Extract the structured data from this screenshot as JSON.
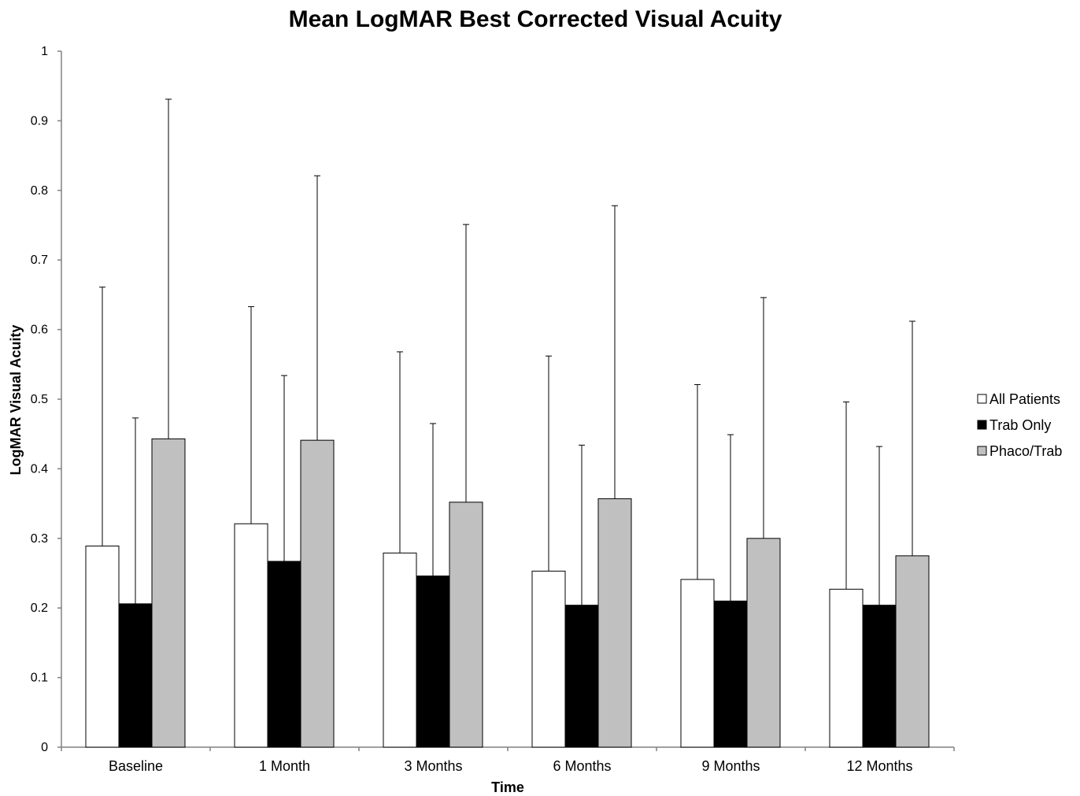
{
  "chart_data": {
    "type": "bar",
    "title": "Mean LogMAR Best Corrected Visual Acuity",
    "xlabel": "Time",
    "ylabel": "LogMAR Visual Acuity",
    "ylim": [
      0,
      1
    ],
    "yticks": [
      "0",
      "0.1",
      "0.2",
      "0.3",
      "0.4",
      "0.5",
      "0.6",
      "0.7",
      "0.8",
      "0.9",
      "1"
    ],
    "categories": [
      "Baseline",
      "1 Month",
      "3 Months",
      "6 Months",
      "9 Months",
      "12 Months"
    ],
    "series": [
      {
        "name": "All Patients",
        "color": "#ffffff",
        "values": [
          0.289,
          0.321,
          0.279,
          0.253,
          0.241,
          0.227
        ],
        "error_upper": [
          0.661,
          0.633,
          0.568,
          0.562,
          0.521,
          0.496
        ]
      },
      {
        "name": "Trab Only",
        "color": "#000000",
        "values": [
          0.206,
          0.267,
          0.246,
          0.204,
          0.21,
          0.204
        ],
        "error_upper": [
          0.473,
          0.534,
          0.465,
          0.434,
          0.449,
          0.432
        ]
      },
      {
        "name": "Phaco/Trab",
        "color": "#c0c0c0",
        "values": [
          0.443,
          0.441,
          0.352,
          0.357,
          0.3,
          0.275
        ],
        "error_upper": [
          0.931,
          0.821,
          0.751,
          0.778,
          0.646,
          0.612
        ]
      }
    ],
    "grid": false,
    "legend_position": "right"
  }
}
